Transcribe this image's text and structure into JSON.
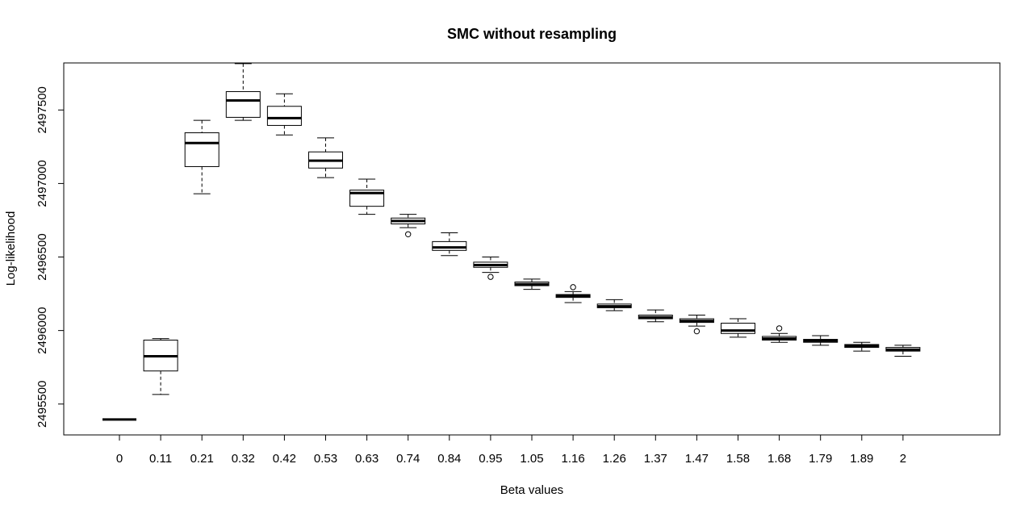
{
  "chart_data": {
    "type": "boxplot",
    "title": "SMC without resampling",
    "xlabel": "Beta values",
    "ylabel": "Log-likelihood",
    "categories": [
      "0",
      "0.11",
      "0.21",
      "0.32",
      "0.42",
      "0.53",
      "0.63",
      "0.74",
      "0.84",
      "0.95",
      "1.05",
      "1.16",
      "1.26",
      "1.37",
      "1.47",
      "1.58",
      "1.68",
      "1.79",
      "1.89",
      "2"
    ],
    "y_ticks": [
      2495500,
      2496000,
      2496500,
      2497000,
      2497500
    ],
    "ylim": [
      2495290,
      2497820
    ],
    "boxes": [
      {
        "min": 2495395,
        "q1": 2495395,
        "median": 2495395,
        "q3": 2495395,
        "max": 2495395,
        "outliers": []
      },
      {
        "min": 2495565,
        "q1": 2495725,
        "median": 2495825,
        "q3": 2495935,
        "max": 2495945,
        "outliers": []
      },
      {
        "min": 2496930,
        "q1": 2497115,
        "median": 2497275,
        "q3": 2497345,
        "max": 2497430,
        "outliers": []
      },
      {
        "min": 2497430,
        "q1": 2497450,
        "median": 2497565,
        "q3": 2497625,
        "max": 2497815,
        "outliers": []
      },
      {
        "min": 2497330,
        "q1": 2497395,
        "median": 2497445,
        "q3": 2497525,
        "max": 2497610,
        "outliers": []
      },
      {
        "min": 2497040,
        "q1": 2497105,
        "median": 2497155,
        "q3": 2497215,
        "max": 2497310,
        "outliers": []
      },
      {
        "min": 2496790,
        "q1": 2496845,
        "median": 2496935,
        "q3": 2496955,
        "max": 2497030,
        "outliers": []
      },
      {
        "min": 2496700,
        "q1": 2496725,
        "median": 2496745,
        "q3": 2496765,
        "max": 2496790,
        "outliers": [
          2496655
        ]
      },
      {
        "min": 2496510,
        "q1": 2496545,
        "median": 2496565,
        "q3": 2496605,
        "max": 2496665,
        "outliers": []
      },
      {
        "min": 2496395,
        "q1": 2496430,
        "median": 2496445,
        "q3": 2496465,
        "max": 2496500,
        "outliers": [
          2496365
        ]
      },
      {
        "min": 2496280,
        "q1": 2496305,
        "median": 2496315,
        "q3": 2496330,
        "max": 2496350,
        "outliers": []
      },
      {
        "min": 2496190,
        "q1": 2496225,
        "median": 2496235,
        "q3": 2496245,
        "max": 2496265,
        "outliers": [
          2496295
        ]
      },
      {
        "min": 2496135,
        "q1": 2496155,
        "median": 2496165,
        "q3": 2496180,
        "max": 2496210,
        "outliers": []
      },
      {
        "min": 2496060,
        "q1": 2496080,
        "median": 2496090,
        "q3": 2496105,
        "max": 2496140,
        "outliers": []
      },
      {
        "min": 2496030,
        "q1": 2496055,
        "median": 2496065,
        "q3": 2496080,
        "max": 2496105,
        "outliers": [
          2495995
        ]
      },
      {
        "min": 2495955,
        "q1": 2495980,
        "median": 2496000,
        "q3": 2496050,
        "max": 2496080,
        "outliers": []
      },
      {
        "min": 2495920,
        "q1": 2495935,
        "median": 2495945,
        "q3": 2495960,
        "max": 2495980,
        "outliers": [
          2496015
        ]
      },
      {
        "min": 2495900,
        "q1": 2495920,
        "median": 2495930,
        "q3": 2495940,
        "max": 2495965,
        "outliers": []
      },
      {
        "min": 2495860,
        "q1": 2495885,
        "median": 2495895,
        "q3": 2495905,
        "max": 2495920,
        "outliers": []
      },
      {
        "min": 2495825,
        "q1": 2495860,
        "median": 2495870,
        "q3": 2495885,
        "max": 2495900,
        "outliers": []
      }
    ],
    "grid": false,
    "legend": "none"
  }
}
